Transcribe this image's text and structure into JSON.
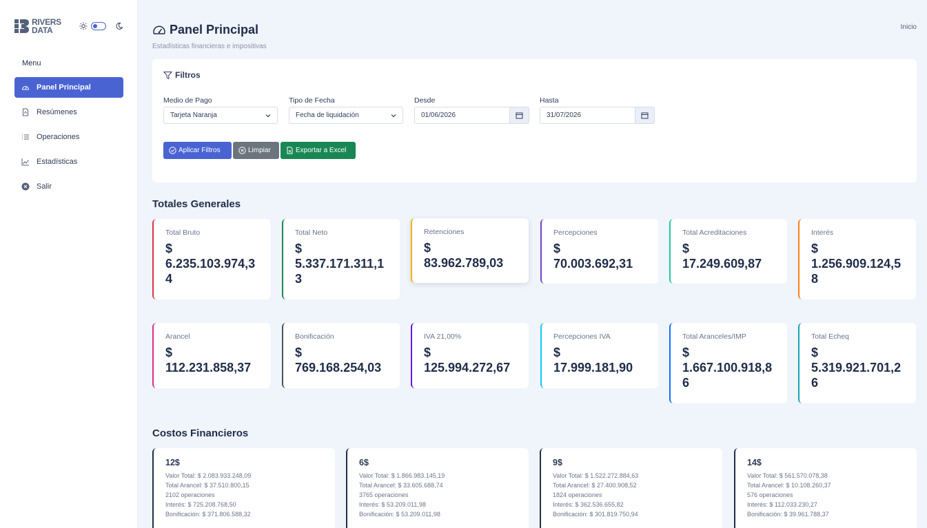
{
  "brand": {
    "line1": "RIVERS",
    "line2": "DATA"
  },
  "sidebar": {
    "menu_title": "Menu",
    "items": [
      {
        "label": "Panel Principal",
        "icon": "speedometer-icon"
      },
      {
        "label": "Resúmenes",
        "icon": "file-pdf-icon"
      },
      {
        "label": "Operaciones",
        "icon": "list-icon"
      },
      {
        "label": "Estadísticas",
        "icon": "chart-line-icon"
      },
      {
        "label": "Salir",
        "icon": "close-circle-icon"
      }
    ]
  },
  "header": {
    "title": "Panel Principal",
    "subtitle": "Estadísticas financieras e impositivas",
    "breadcrumb": "Inicio"
  },
  "filters": {
    "title": "Filtros",
    "medio_pago": {
      "label": "Medio de Pago",
      "value": "Tarjeta Naranja"
    },
    "tipo_fecha": {
      "label": "Tipo de Fecha",
      "value": "Fecha de liquidación"
    },
    "desde": {
      "label": "Desde",
      "value": "01/06/2026"
    },
    "hasta": {
      "label": "Hasta",
      "value": "31/07/2026"
    },
    "apply_label": "Aplicar Filtros",
    "clear_label": "Limpiar",
    "export_label": "Exportar a Excel"
  },
  "totales": {
    "title": "Totales Generales",
    "row1": [
      {
        "label": "Total Bruto",
        "currency": "$",
        "value": "6.235.103.974,34",
        "color": "#dc3545"
      },
      {
        "label": "Total Neto",
        "currency": "$",
        "value": "5.337.171.311,13",
        "color": "#198754"
      },
      {
        "label": "Retenciones",
        "currency": "$",
        "value": "83.962.789,03",
        "color": "#f0b400"
      },
      {
        "label": "Percepciones",
        "currency": "$",
        "value": "70.003.692,31",
        "color": "#6f42c1"
      },
      {
        "label": "Total Acreditaciones",
        "currency": "$",
        "value": "17.249.609,87",
        "color": "#20c997"
      },
      {
        "label": "Interés",
        "currency": "$",
        "value": "1.256.909.124,58",
        "color": "#fd7e14"
      }
    ],
    "row2": [
      {
        "label": "Arancel",
        "currency": "$",
        "value": "112.231.858,37",
        "color": "#d63384"
      },
      {
        "label": "Bonificación",
        "currency": "$",
        "value": "769.168.254,03",
        "color": "#495057"
      },
      {
        "label": "IVA 21,00%",
        "currency": "$",
        "value": "125.994.272,67",
        "color": "#6610f2"
      },
      {
        "label": "Percepciones IVA",
        "currency": "$",
        "value": "17.999.181,90",
        "color": "#0dcaf0"
      },
      {
        "label": "Total Aranceles/IMP",
        "currency": "$",
        "value": "1.667.100.918,86",
        "color": "#0d6efd"
      },
      {
        "label": "Total Echeq",
        "currency": "$",
        "value": "5.319.921.701,26",
        "color": "#17a2b8"
      }
    ]
  },
  "costos": {
    "title": "Costos Financieros",
    "cards": [
      {
        "title": "12$",
        "valor_total": "Valor Total: $ 2.083.933.248,09",
        "total_arancel": "Total Arancel: $ 37.510.800,15",
        "operaciones": "2102 operaciones",
        "interes": "Interés: $ 725.208.768,50",
        "bonificacion": "Bonificación: $ 371.806.588,32"
      },
      {
        "title": "6$",
        "valor_total": "Valor Total: $ 1.866.983.145,19",
        "total_arancel": "Total Arancel: $ 33.605.688,74",
        "operaciones": "3765 operaciones",
        "interes": "Interés: $ 53.209.011,98",
        "bonificacion": "Bonificación: $ 53.209.011,98"
      },
      {
        "title": "9$",
        "valor_total": "Valor Total: $ 1.522.272.884,63",
        "total_arancel": "Total Arancel: $ 27.400.908,52",
        "operaciones": "1824 operaciones",
        "interes": "Interés: $ 362.536.655,82",
        "bonificacion": "Bonificación: $ 301.819.750,94"
      },
      {
        "title": "14$",
        "valor_total": "Valor Total: $ 561.570.078,38",
        "total_arancel": "Total Arancel: $ 10.108.260,37",
        "operaciones": "576 operaciones",
        "interes": "Interés: $ 112.033.230,27",
        "bonificacion": "Bonificación: $ 39.961.788,37"
      }
    ]
  }
}
